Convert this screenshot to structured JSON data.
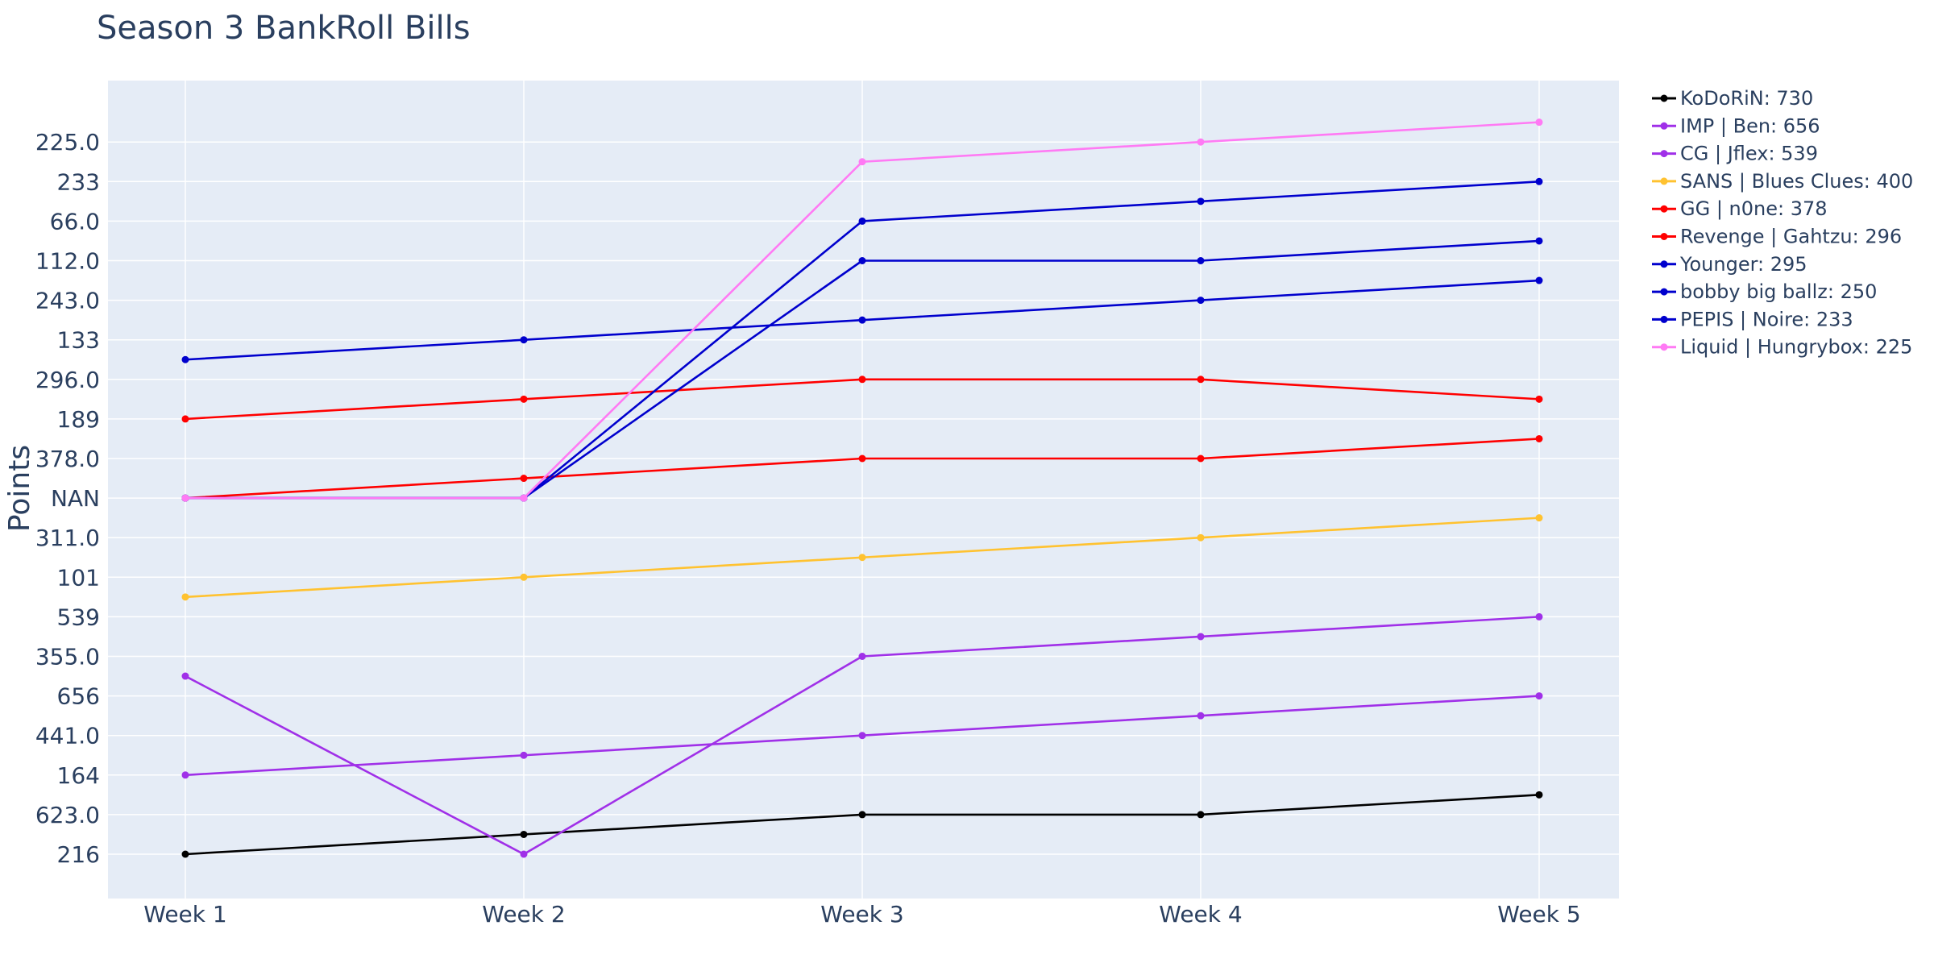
{
  "chart_data": {
    "type": "line",
    "title": "Season 3 BankRoll Bills",
    "xlabel": "",
    "ylabel": "Points",
    "categories": [
      "Week 1",
      "Week 2",
      "Week 3",
      "Week 4",
      "Week 5"
    ],
    "y_axis_type": "categorical",
    "y_categories": [
      "216",
      "623.0",
      "164",
      "441.0",
      "656",
      "355.0",
      "539",
      "101",
      "311.0",
      "NAN",
      "378.0",
      "189",
      "296.0",
      "133",
      "243.0",
      "112.0",
      "66.0",
      "233",
      "225.0"
    ],
    "grid": true,
    "legend_position": "right",
    "plot_background": "#e5ecf6",
    "series": [
      {
        "name": "KoDoRiN: 730",
        "color": "#000000",
        "values": [
          "216",
          null,
          "623.0",
          "623.0",
          null
        ],
        "value_positions": [
          0,
          0.5,
          1,
          1,
          1.5
        ]
      },
      {
        "name": "IMP | Ben: 656",
        "color": "#a030e8",
        "values": [
          "164",
          null,
          "441.0",
          null,
          "656"
        ],
        "value_positions": [
          2,
          2.5,
          3,
          3.5,
          4
        ]
      },
      {
        "name": "CG | Jflex: 539",
        "color": "#a030e8",
        "values": [
          null,
          "216",
          "355.0",
          null,
          "539"
        ],
        "value_positions": [
          4.5,
          0,
          5,
          5.5,
          6
        ]
      },
      {
        "name": "SANS | Blues Clues: 400",
        "color": "#ffc230",
        "values": [
          null,
          "101",
          null,
          "311.0",
          null
        ],
        "value_positions": [
          6.5,
          7,
          7.5,
          8,
          8.5
        ]
      },
      {
        "name": "GG | n0ne: 378",
        "color": "#ff0000",
        "values": [
          "NAN",
          null,
          "378.0",
          "378.0",
          null
        ],
        "value_positions": [
          9,
          9.5,
          10,
          10,
          10.5
        ]
      },
      {
        "name": "Revenge | Gahtzu: 296",
        "color": "#ff0000",
        "values": [
          "189",
          null,
          "296.0",
          "296.0",
          null
        ],
        "value_positions": [
          11,
          11.5,
          12,
          12,
          11.5
        ]
      },
      {
        "name": "Younger: 295",
        "color": "#0000cd",
        "values": [
          null,
          null,
          null,
          "243.0",
          null
        ],
        "value_positions": [
          12.5,
          13,
          13.5,
          14,
          14.5
        ]
      },
      {
        "name": "bobby big ballz: 250",
        "color": "#0000cd",
        "values": [
          "NAN",
          "NAN",
          "112.0",
          "112.0",
          null
        ],
        "value_positions": [
          9,
          9,
          15,
          15,
          15.5
        ]
      },
      {
        "name": "PEPIS | Noire: 233",
        "color": "#0000cd",
        "values": [
          "NAN",
          "NAN",
          "66.0",
          null,
          "233"
        ],
        "value_positions": [
          9,
          9,
          16,
          16.5,
          17
        ]
      },
      {
        "name": "Liquid | Hungrybox: 225",
        "color": "#ff7af4",
        "values": [
          "NAN",
          "NAN",
          null,
          "225.0",
          null
        ],
        "value_positions": [
          9,
          9,
          17.5,
          18,
          18.5
        ]
      }
    ]
  }
}
